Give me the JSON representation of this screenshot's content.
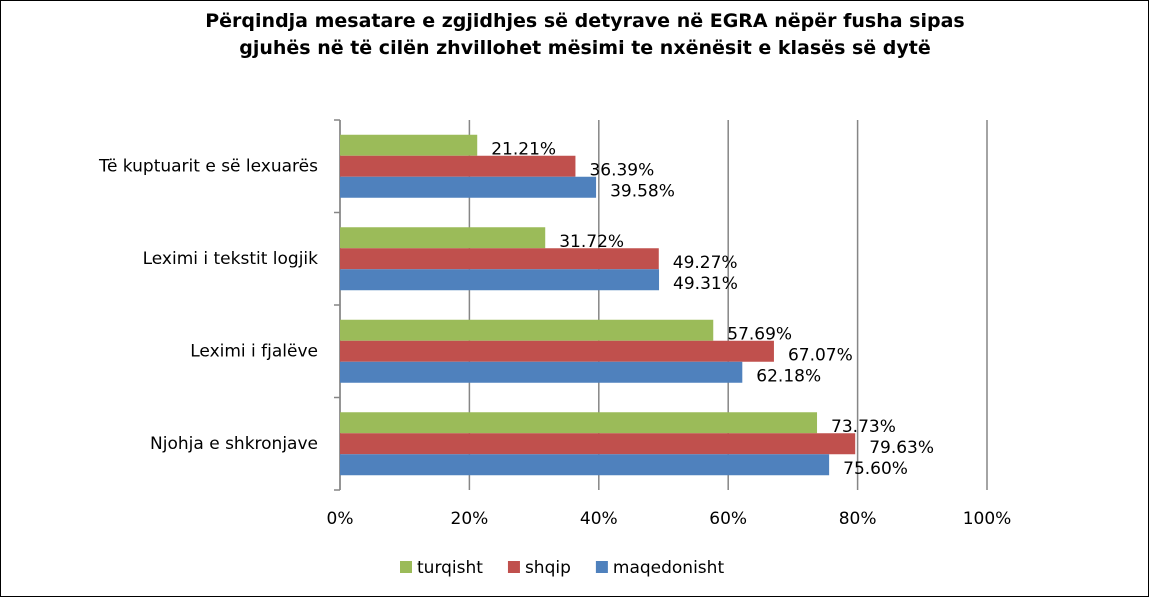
{
  "chart_data": {
    "type": "barh",
    "title": "Përqindja mesatare e zgjidhjes së detyrave në EGRA nëpër fusha sipas gjuhës në të cilën zhvillohet mësimi te nxënësit e klasës së dytë",
    "categories": [
      "Të kuptuarit e së lexuarës",
      "Leximi i tekstit logjik",
      "Leximi i fjalëve",
      "Njohja e shkronjave"
    ],
    "series": [
      {
        "name": "turqisht",
        "color": "#9bbb59",
        "values": [
          21.21,
          31.72,
          57.69,
          73.73
        ],
        "value_labels": [
          "21.21%",
          "31.72%",
          "57.69%",
          "73.73%"
        ]
      },
      {
        "name": "shqip",
        "color": "#c0504d",
        "values": [
          36.39,
          49.27,
          67.07,
          79.63
        ],
        "value_labels": [
          "36.39%",
          "49.27%",
          "67.07%",
          "79.63%"
        ]
      },
      {
        "name": "maqedonisht",
        "color": "#4f81bd",
        "values": [
          39.58,
          49.31,
          62.18,
          75.6
        ],
        "value_labels": [
          "39.58%",
          "49.31%",
          "62.18%",
          "75.60%"
        ]
      }
    ],
    "xlim": [
      0,
      100
    ],
    "xticks": [
      {
        "value": 0,
        "label": "0%"
      },
      {
        "value": 20,
        "label": "20%"
      },
      {
        "value": 40,
        "label": "40%"
      },
      {
        "value": 60,
        "label": "60%"
      },
      {
        "value": 80,
        "label": "80%"
      },
      {
        "value": 100,
        "label": "100%"
      }
    ],
    "grid": true,
    "legend": "bottom"
  }
}
